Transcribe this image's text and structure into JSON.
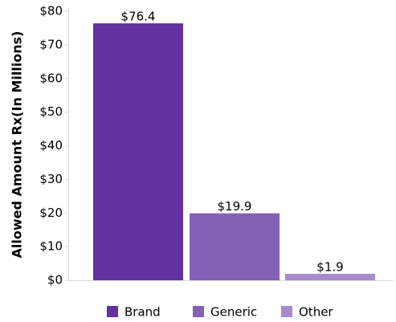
{
  "chart_data": {
    "type": "bar",
    "y_label": "Allowed Amount Rx(In Millions)",
    "categories": [
      "Brand",
      "Generic",
      "Other"
    ],
    "values": [
      76.4,
      19.9,
      1.9
    ],
    "value_labels": [
      "$76.4",
      "$19.9",
      "$1.9"
    ],
    "colors": [
      "#6232a0",
      "#8460b6",
      "#a88ad0"
    ],
    "ylim": [
      0,
      80
    ],
    "yticks": [
      {
        "value": 0,
        "label": "$0"
      },
      {
        "value": 10,
        "label": "$10"
      },
      {
        "value": 20,
        "label": "$20"
      },
      {
        "value": 30,
        "label": "$30"
      },
      {
        "value": 40,
        "label": "$40"
      },
      {
        "value": 50,
        "label": "$50"
      },
      {
        "value": 60,
        "label": "$60"
      },
      {
        "value": 70,
        "label": "$70"
      },
      {
        "value": 80,
        "label": "$80"
      }
    ],
    "legend": "bottom"
  }
}
